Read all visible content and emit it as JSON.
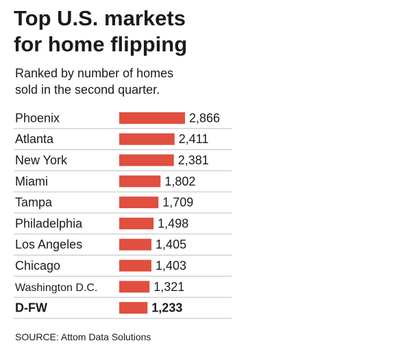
{
  "title_line1": "Top U.S. markets",
  "title_line2": "for home flipping",
  "subtitle_line1": "Ranked by number of homes",
  "subtitle_line2": "sold in the second quarter.",
  "source": "SOURCE: Attom Data Solutions",
  "colors": {
    "bar": "#e04f3f",
    "divider": "#bdbdbd",
    "text": "#1a1a1a"
  },
  "chart_data": {
    "type": "bar",
    "orientation": "horizontal",
    "categories": [
      "Phoenix",
      "Atlanta",
      "New York",
      "Miami",
      "Tampa",
      "Philadelphia",
      "Los Angeles",
      "Chicago",
      "Washington D.C.",
      "D-FW"
    ],
    "values": [
      2866,
      2411,
      2381,
      1802,
      1709,
      1498,
      1405,
      1403,
      1321,
      1233
    ],
    "value_labels": [
      "2,866",
      "2,411",
      "2,381",
      "1,802",
      "1,709",
      "1,498",
      "1,405",
      "1,403",
      "1,321",
      "1,233"
    ],
    "highlighted": "D-FW",
    "xlim": [
      0,
      2866
    ],
    "grid": false,
    "title": "Top U.S. markets for home flipping",
    "xlabel": "",
    "ylabel": ""
  }
}
